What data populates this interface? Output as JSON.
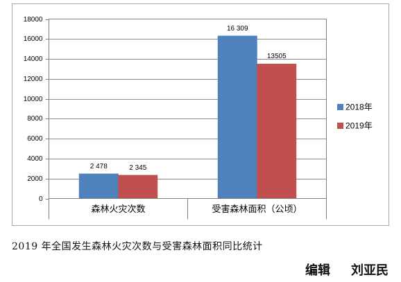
{
  "chart_data": {
    "type": "bar",
    "categories": [
      "森林火灾次数",
      "受害森林面积（公顷）"
    ],
    "series": [
      {
        "name": "2018年",
        "values": [
          2478,
          16309
        ],
        "labels": [
          "2 478",
          "16 309"
        ],
        "color": "#4F81BD"
      },
      {
        "name": "2019年",
        "values": [
          2345,
          13505
        ],
        "labels": [
          "2 345",
          "13505"
        ],
        "color": "#C0504D"
      }
    ],
    "ylim": [
      0,
      18000
    ],
    "yticks": [
      0,
      2000,
      4000,
      6000,
      8000,
      10000,
      12000,
      14000,
      16000,
      18000
    ],
    "grid": true,
    "legend": "right"
  },
  "caption": "2019 年全国发生森林火灾次数与受害森林面积同比统计",
  "editor": {
    "label": "编辑",
    "name": "刘亚民"
  }
}
